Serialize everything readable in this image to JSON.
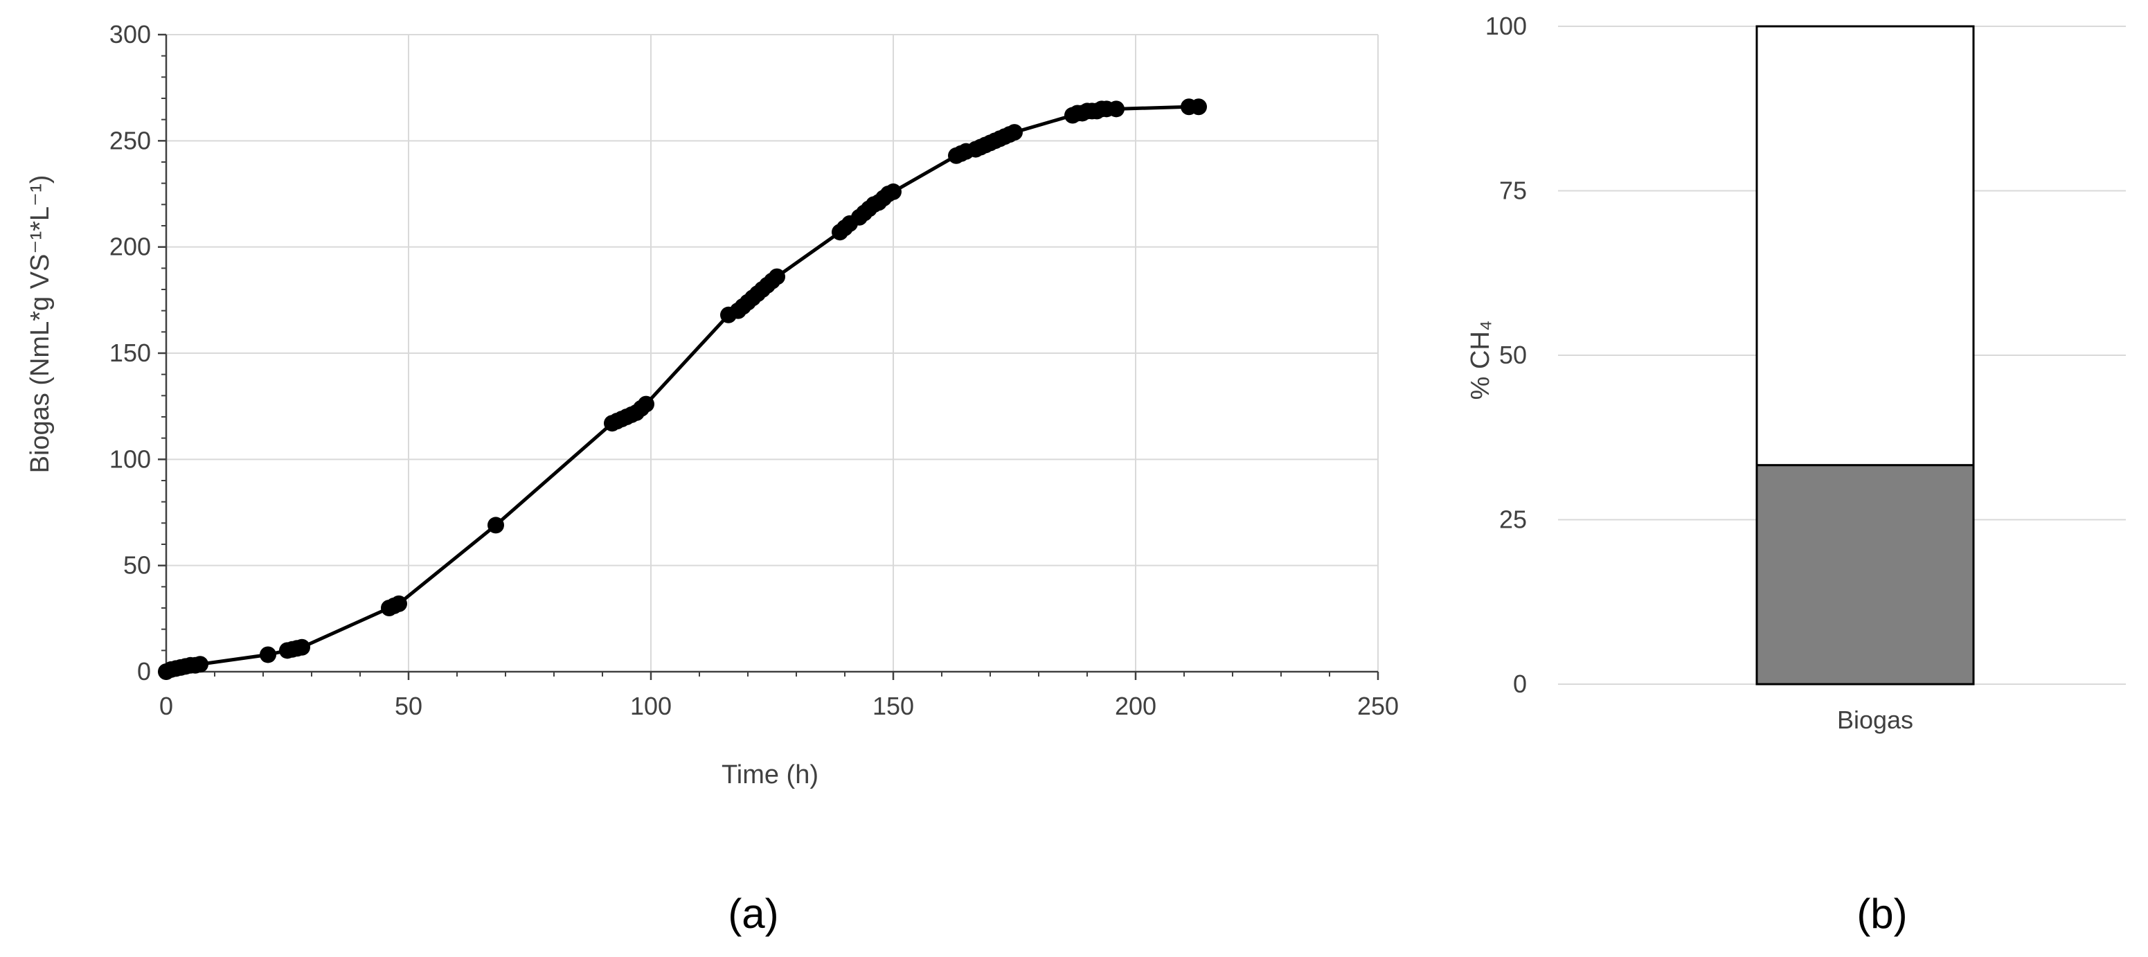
{
  "panels": {
    "a": {
      "label": "(a)"
    },
    "b": {
      "label": "(b)"
    }
  },
  "colors": {
    "line": "#000000",
    "grid": "#d9d9d9",
    "axis": "#404040",
    "bar_fill": "#808080",
    "bar_upper_fill": "#ffffff"
  },
  "chart_data": [
    {
      "type": "scatter",
      "panel": "a",
      "xlabel": "Time (h)",
      "ylabel": "Biogas (NmL*g VS⁻¹*L⁻¹)",
      "xlim": [
        0,
        250
      ],
      "ylim": [
        0,
        300
      ],
      "xticks": [
        0,
        50,
        100,
        150,
        200,
        250
      ],
      "yticks": [
        0,
        50,
        100,
        150,
        200,
        250,
        300
      ],
      "grid": true,
      "connected": true,
      "series": [
        {
          "x": [
            0,
            1,
            2,
            3,
            4,
            5,
            6,
            7,
            21,
            25,
            26,
            27,
            28,
            46,
            47,
            48,
            68,
            92,
            93,
            94,
            95,
            96,
            97,
            98,
            99,
            116,
            118,
            119,
            120,
            121,
            122,
            123,
            124,
            125,
            126,
            139,
            140,
            141,
            143,
            144,
            145,
            146,
            147,
            148,
            149,
            150,
            163,
            164,
            165,
            167,
            168,
            169,
            170,
            171,
            172,
            173,
            174,
            175,
            187,
            188,
            189,
            190,
            191,
            192,
            193,
            194,
            196,
            211,
            213
          ],
          "y": [
            0,
            1,
            1.5,
            2,
            2.5,
            3,
            3,
            3.5,
            8,
            10,
            10.5,
            11,
            11.5,
            30,
            31,
            32,
            69,
            117,
            118,
            119,
            120,
            121,
            122,
            124,
            126,
            168,
            170,
            172,
            174,
            176,
            178,
            180,
            182,
            184,
            186,
            207,
            209,
            211,
            214,
            216,
            218,
            220,
            221,
            223,
            225,
            226,
            243,
            244,
            245,
            246,
            247,
            248,
            249,
            250,
            251,
            252,
            253,
            254,
            262,
            263,
            263,
            264,
            264,
            264,
            265,
            265,
            265,
            266,
            266
          ]
        }
      ]
    },
    {
      "type": "bar",
      "panel": "b",
      "ylabel": "% CH₄",
      "categories": [
        "Biogas"
      ],
      "ylim": [
        0,
        100
      ],
      "yticks": [
        0,
        25,
        50,
        75,
        100
      ],
      "grid": true,
      "stacked": true,
      "series": [
        {
          "values": [
            33.3
          ]
        },
        {
          "values": [
            66.7
          ]
        }
      ]
    }
  ]
}
